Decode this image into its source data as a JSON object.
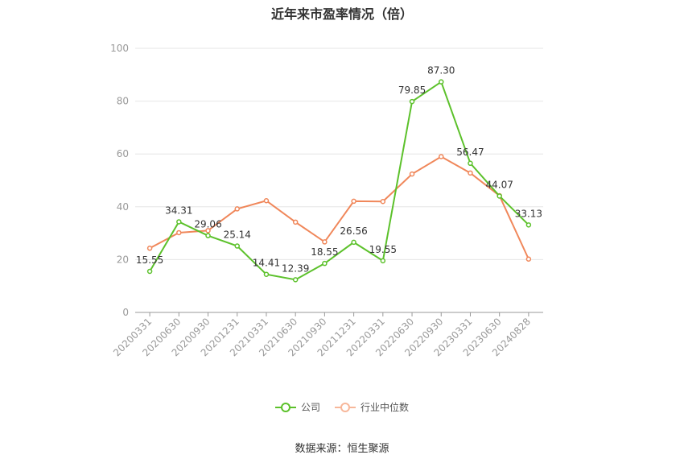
{
  "chart_data": {
    "type": "line",
    "title": "近年来市盈率情况（倍）",
    "x": [
      "20200331",
      "20200630",
      "20200930",
      "20201231",
      "20210331",
      "20210630",
      "20210930",
      "20211231",
      "20220331",
      "20220630",
      "20220930",
      "20230331",
      "20230630",
      "20240828"
    ],
    "series": [
      {
        "name": "公司",
        "color": "#5cc12b",
        "values": [
          15.55,
          34.31,
          29.06,
          25.14,
          14.41,
          12.39,
          18.55,
          26.56,
          19.55,
          79.85,
          87.3,
          56.47,
          44.07,
          33.13
        ],
        "labels": [
          "15.55",
          "34.31",
          "29.06",
          "25.14",
          "14.41",
          "12.39",
          "18.55",
          "26.56",
          "19.55",
          "79.85",
          "87.30",
          "56.47",
          "44.07",
          "33.13"
        ]
      },
      {
        "name": "行业中位数",
        "color": "#f0875a",
        "values": [
          24.3,
          30.2,
          31.0,
          39.2,
          42.3,
          34.2,
          26.7,
          42.1,
          42.0,
          52.4,
          59.0,
          52.8,
          44.2,
          20.2
        ]
      }
    ],
    "ylim": [
      0,
      100
    ],
    "yticks": [
      0,
      20,
      40,
      60,
      80,
      100
    ],
    "grid": true,
    "legend_position": "bottom"
  },
  "source": "数据来源：恒生聚源"
}
